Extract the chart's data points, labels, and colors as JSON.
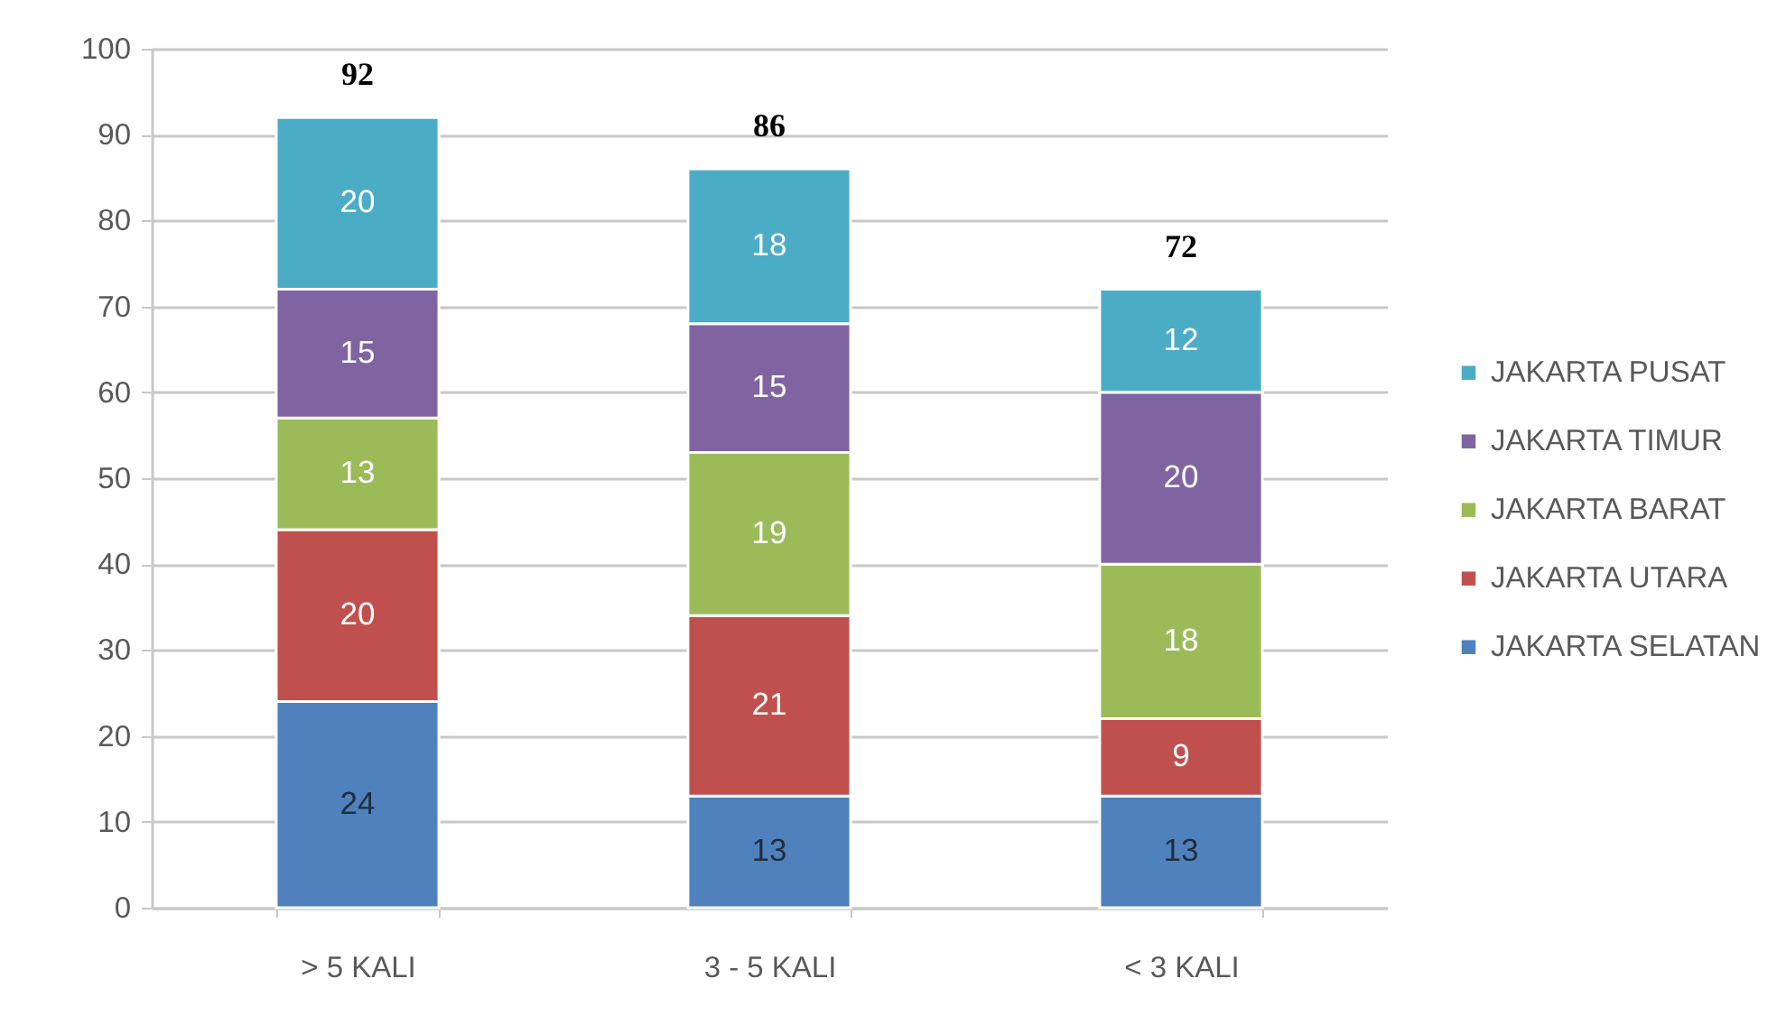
{
  "chart_data": {
    "type": "bar",
    "stacked": true,
    "categories": [
      "> 5 KALI",
      "3 - 5 KALI",
      "< 3 KALI"
    ],
    "series": [
      {
        "name": "JAKARTA SELATAN",
        "color": "#4f81bd",
        "values": [
          24,
          13,
          13
        ]
      },
      {
        "name": "JAKARTA UTARA",
        "color": "#c0504d",
        "values": [
          20,
          21,
          9
        ]
      },
      {
        "name": "JAKARTA BARAT",
        "color": "#9bbb59",
        "values": [
          13,
          19,
          18
        ]
      },
      {
        "name": "JAKARTA TIMUR",
        "color": "#8064a2",
        "values": [
          15,
          15,
          20
        ]
      },
      {
        "name": "JAKARTA PUSAT",
        "color": "#4bacc6",
        "values": [
          20,
          18,
          12
        ]
      }
    ],
    "ylim": [
      0,
      100
    ],
    "yticks": [
      0,
      10,
      20,
      30,
      40,
      50,
      60,
      70,
      80,
      90,
      100
    ],
    "grid": "y",
    "legend": "right",
    "data_labels": true,
    "totals": [
      "92",
      "86",
      "72"
    ]
  }
}
